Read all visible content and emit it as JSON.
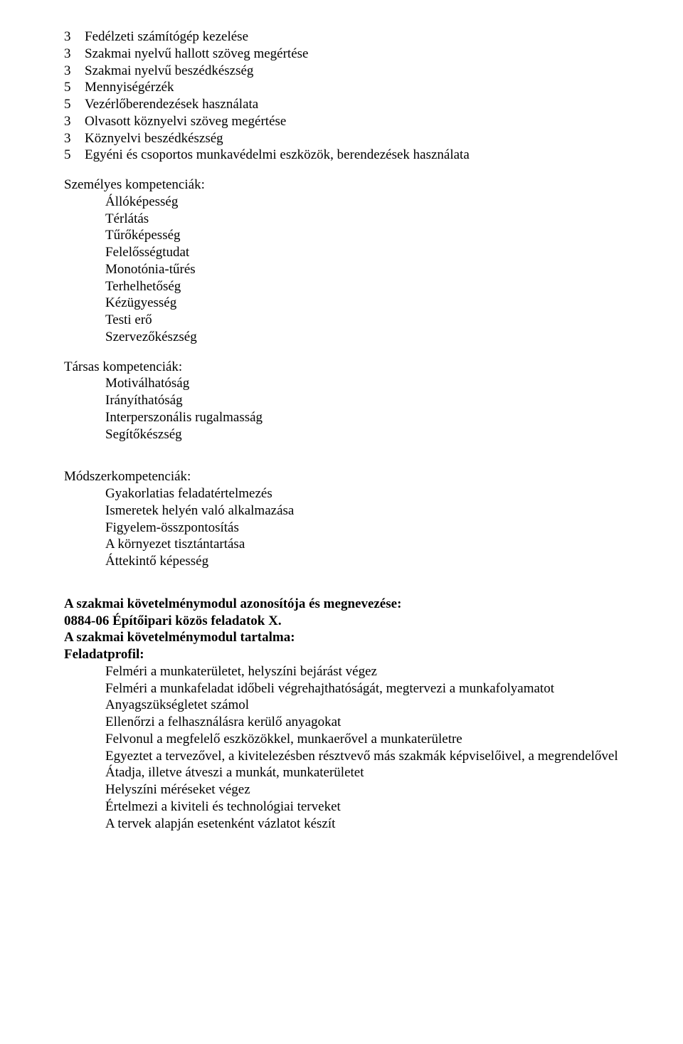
{
  "numberedItems": [
    {
      "num": "3",
      "text": "Fedélzeti számítógép kezelése"
    },
    {
      "num": "3",
      "text": "Szakmai nyelvű hallott szöveg megértése"
    },
    {
      "num": "3",
      "text": "Szakmai nyelvű beszédkészség"
    },
    {
      "num": "5",
      "text": "Mennyiségérzék"
    },
    {
      "num": "5",
      "text": "Vezérlőberendezések használata"
    },
    {
      "num": "3",
      "text": "Olvasott köznyelvi szöveg megértése"
    },
    {
      "num": "3",
      "text": "Köznyelvi beszédkészség"
    },
    {
      "num": "5",
      "text": "Egyéni és csoportos munkavédelmi eszközök, berendezések használata"
    }
  ],
  "personalCompetencies": {
    "heading": "Személyes kompetenciák:",
    "items": [
      "Állóképesség",
      "Térlátás",
      "Tűrőképesség",
      "Felelősségtudat",
      "Monotónia-tűrés",
      "Terhelhetőség",
      "Kézügyesség",
      "Testi erő",
      "Szervezőkészség"
    ]
  },
  "socialCompetencies": {
    "heading": "Társas kompetenciák:",
    "items": [
      "Motiválhatóság",
      "Irányíthatóság",
      "Interperszonális rugalmasság",
      "Segítőkészség"
    ]
  },
  "methodCompetencies": {
    "heading": "Módszerkompetenciák:",
    "items": [
      "Gyakorlatias feladatértelmezés",
      "Ismeretek helyén való alkalmazása",
      "Figyelem-összpontosítás",
      "A környezet tisztántartása",
      "Áttekintő képesség"
    ]
  },
  "moduleSection": {
    "line1": "A szakmai követelménymodul azonosítója és megnevezése:",
    "line2": "0884-06  Építőipari közös feladatok X.",
    "line3": "A szakmai követelménymodul tartalma:",
    "line4": "Feladatprofil:",
    "items": [
      "Felméri a munkaterületet, helyszíni bejárást végez",
      "Felméri a munkafeladat időbeli végrehajthatóságát, megtervezi a munkafolyamatot",
      "Anyagszükségletet számol",
      "Ellenőrzi a felhasználásra kerülő anyagokat",
      "Felvonul a megfelelő eszközökkel, munkaerővel a munkaterületre",
      "Egyeztet a tervezővel, a kivitelezésben résztvevő más szakmák képviselőivel, a megrendelővel",
      "Átadja, illetve átveszi a munkát, munkaterületet",
      "Helyszíni méréseket végez",
      "Értelmezi a kiviteli és technológiai terveket",
      "A tervek alapján esetenként vázlatot készít"
    ]
  }
}
